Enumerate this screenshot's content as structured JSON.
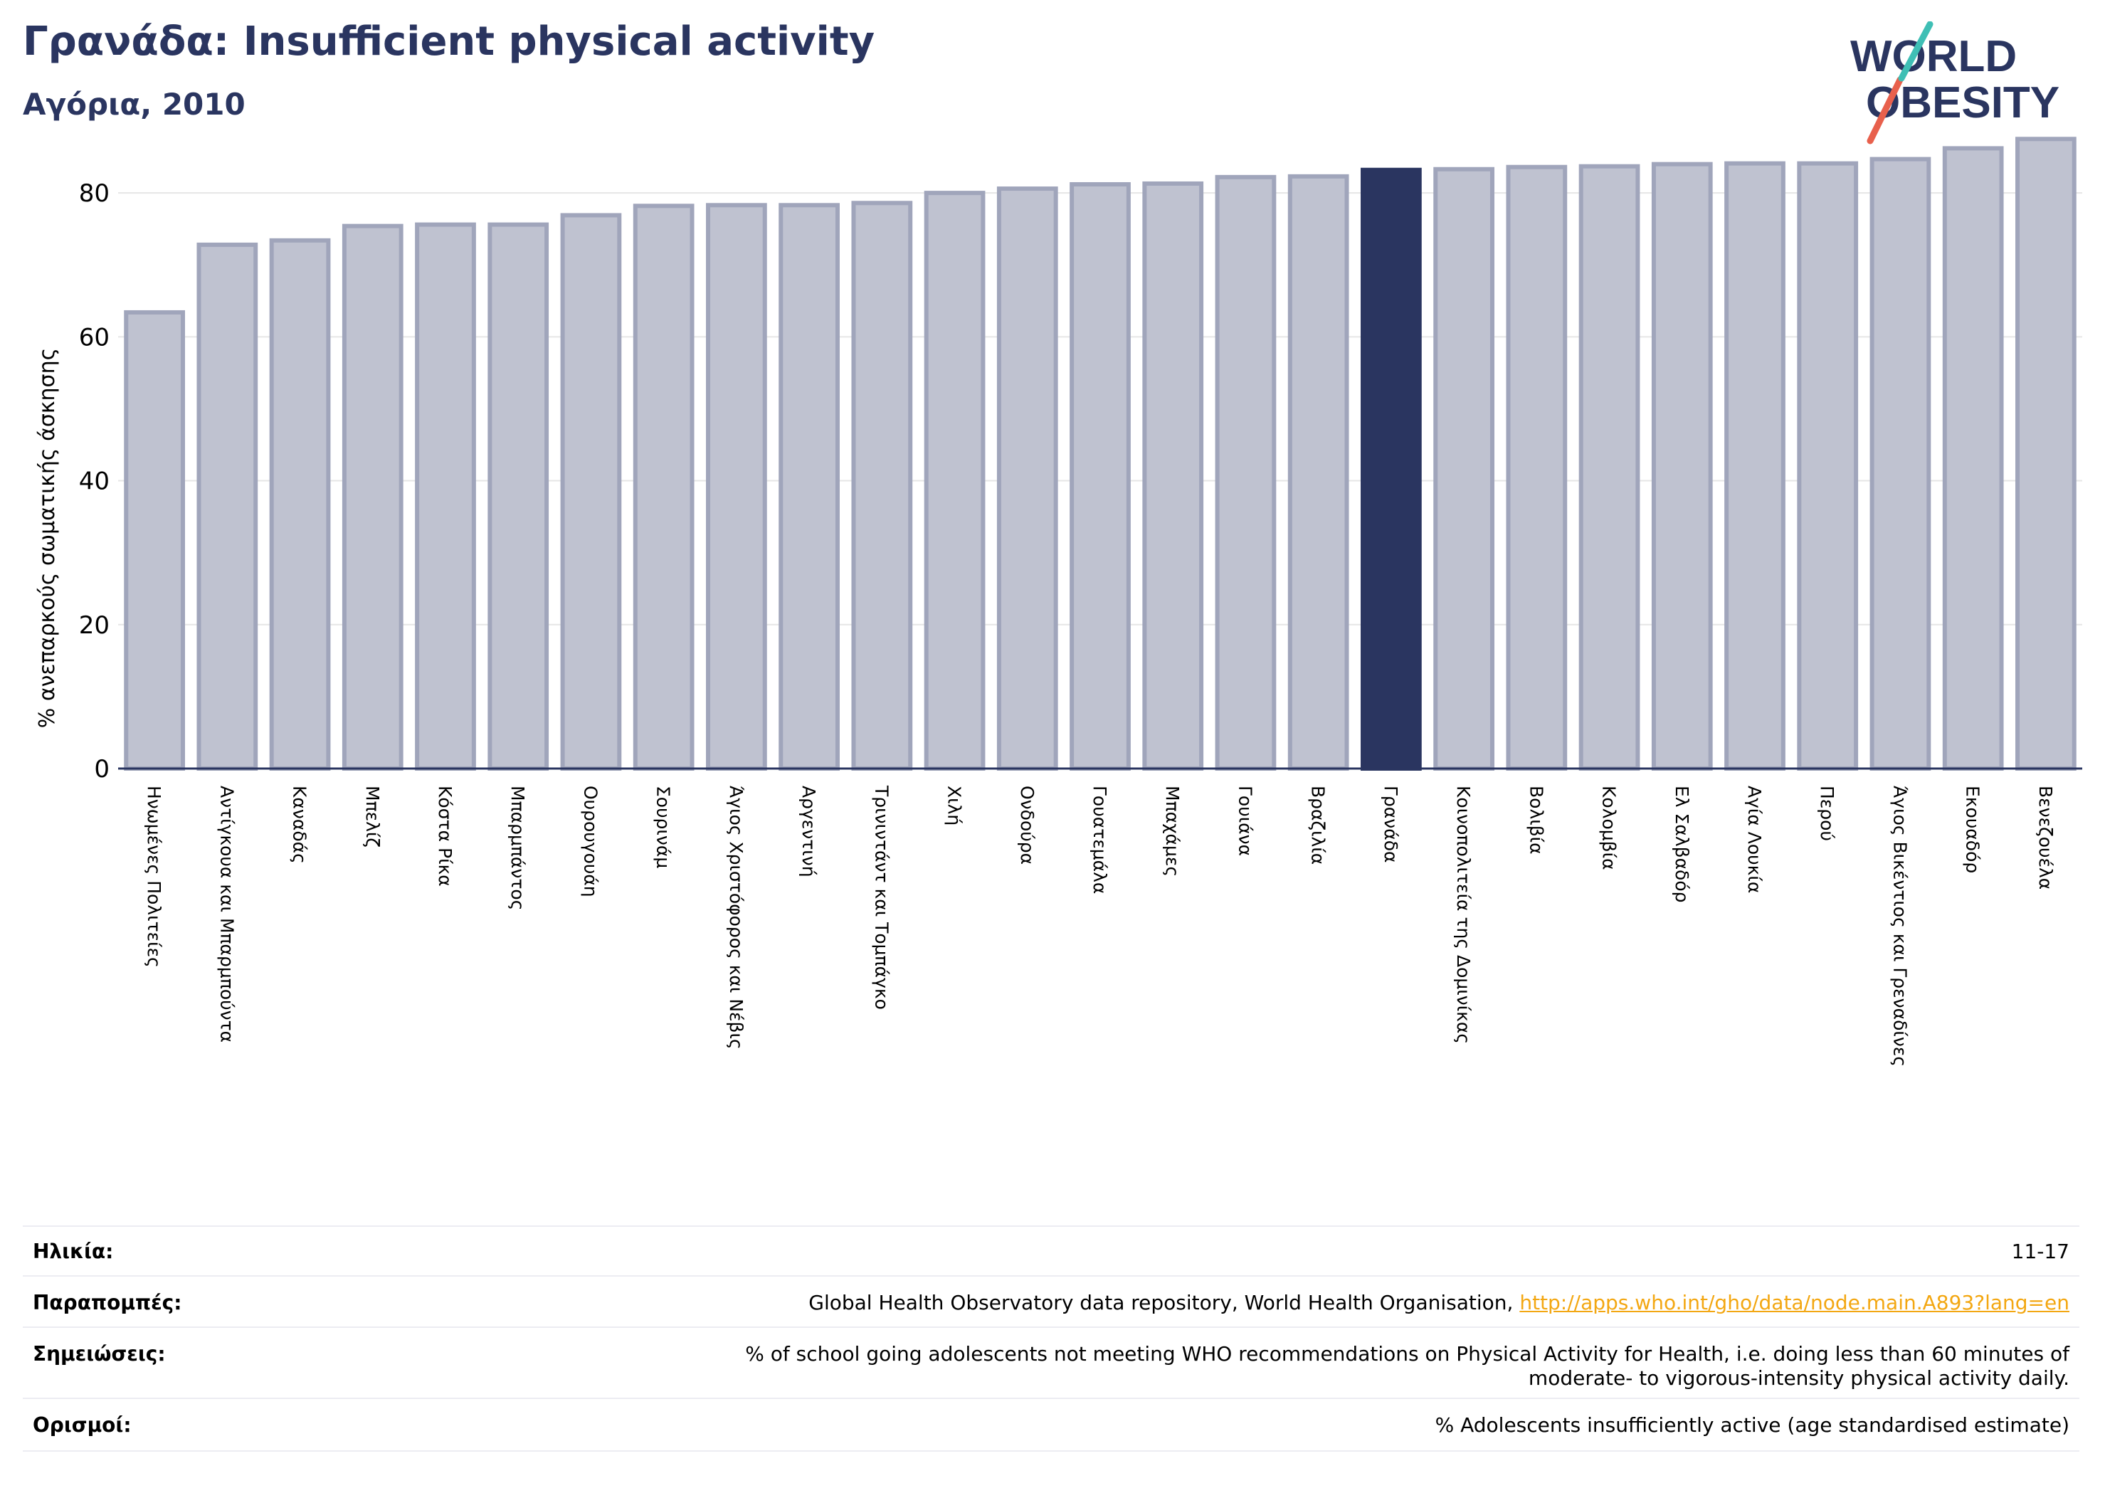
{
  "header": {
    "title": "Γρανάδα: Insufficient physical activity",
    "subtitle": "Αγόρια, 2010"
  },
  "logo": {
    "line1": "WORLD",
    "line2": "OBESITY"
  },
  "colors": {
    "bar": "#bfc2d0",
    "bar_edge": "#a0a5bb",
    "highlight": "#2a3560",
    "text": "#2a3560",
    "link": "#f3a712"
  },
  "chart_data": {
    "type": "bar",
    "ylabel": "% ανεπαρκούς σωματικής άσκησης",
    "ylim": [
      0,
      90
    ],
    "yticks": [
      0,
      20,
      40,
      60,
      80
    ],
    "grid": true,
    "highlight": "Γρανάδα",
    "categories": [
      "Ηνωμένες Πολιτείες",
      "Αντίγκουα και Μπαρμπούντα",
      "Καναδάς",
      "Μπελίζ",
      "Κόστα Ρίκα",
      "Μπαρμπάντος",
      "Ουρουγουάη",
      "Σουρινάμ",
      "Άγιος Χριστόφορος και Νέβις",
      "Αργεντινή",
      "Τρινιντάντ και Τομπάγκο",
      "Χιλή",
      "Ονδούρα",
      "Γουατεμάλα",
      "Μπαχάμες",
      "Γουιάνα",
      "Βραζιλία",
      "Γρανάδα",
      "Κοινοπολιτεία της Δομινίκας",
      "Βολιβία",
      "Κολομβία",
      "Ελ Σαλβαδόρ",
      "Αγία Λουκία",
      "Περού",
      "Άγιος Βικέντιος και Γρεναδίνες",
      "Εκουαδόρ",
      "Βενεζουέλα"
    ],
    "values": [
      63.4,
      72.8,
      73.4,
      75.4,
      75.6,
      75.6,
      76.9,
      78.2,
      78.3,
      78.3,
      78.6,
      80.0,
      80.6,
      81.2,
      81.3,
      82.2,
      82.3,
      83.2,
      83.3,
      83.6,
      83.7,
      84.0,
      84.1,
      84.1,
      84.7,
      86.2,
      87.5
    ]
  },
  "meta": {
    "age": {
      "label": "Ηλικία:",
      "value": "11-17"
    },
    "references": {
      "label": "Παραπομπές:",
      "value": "Global Health Observatory data repository, World Health Organisation, ",
      "link": "http://apps.who.int/gho/data/node.main.A893?lang=en"
    },
    "notes": {
      "label": "Σημειώσεις:",
      "line1": "% of school going adolescents not meeting WHO recommendations on Physical Activity for Health, i.e. doing less than 60 minutes of",
      "line2": "moderate- to vigorous-intensity physical activity daily."
    },
    "definitions": {
      "label": "Ορισμοί:",
      "value": "% Adolescents insufficiently active (age standardised estimate)"
    }
  }
}
